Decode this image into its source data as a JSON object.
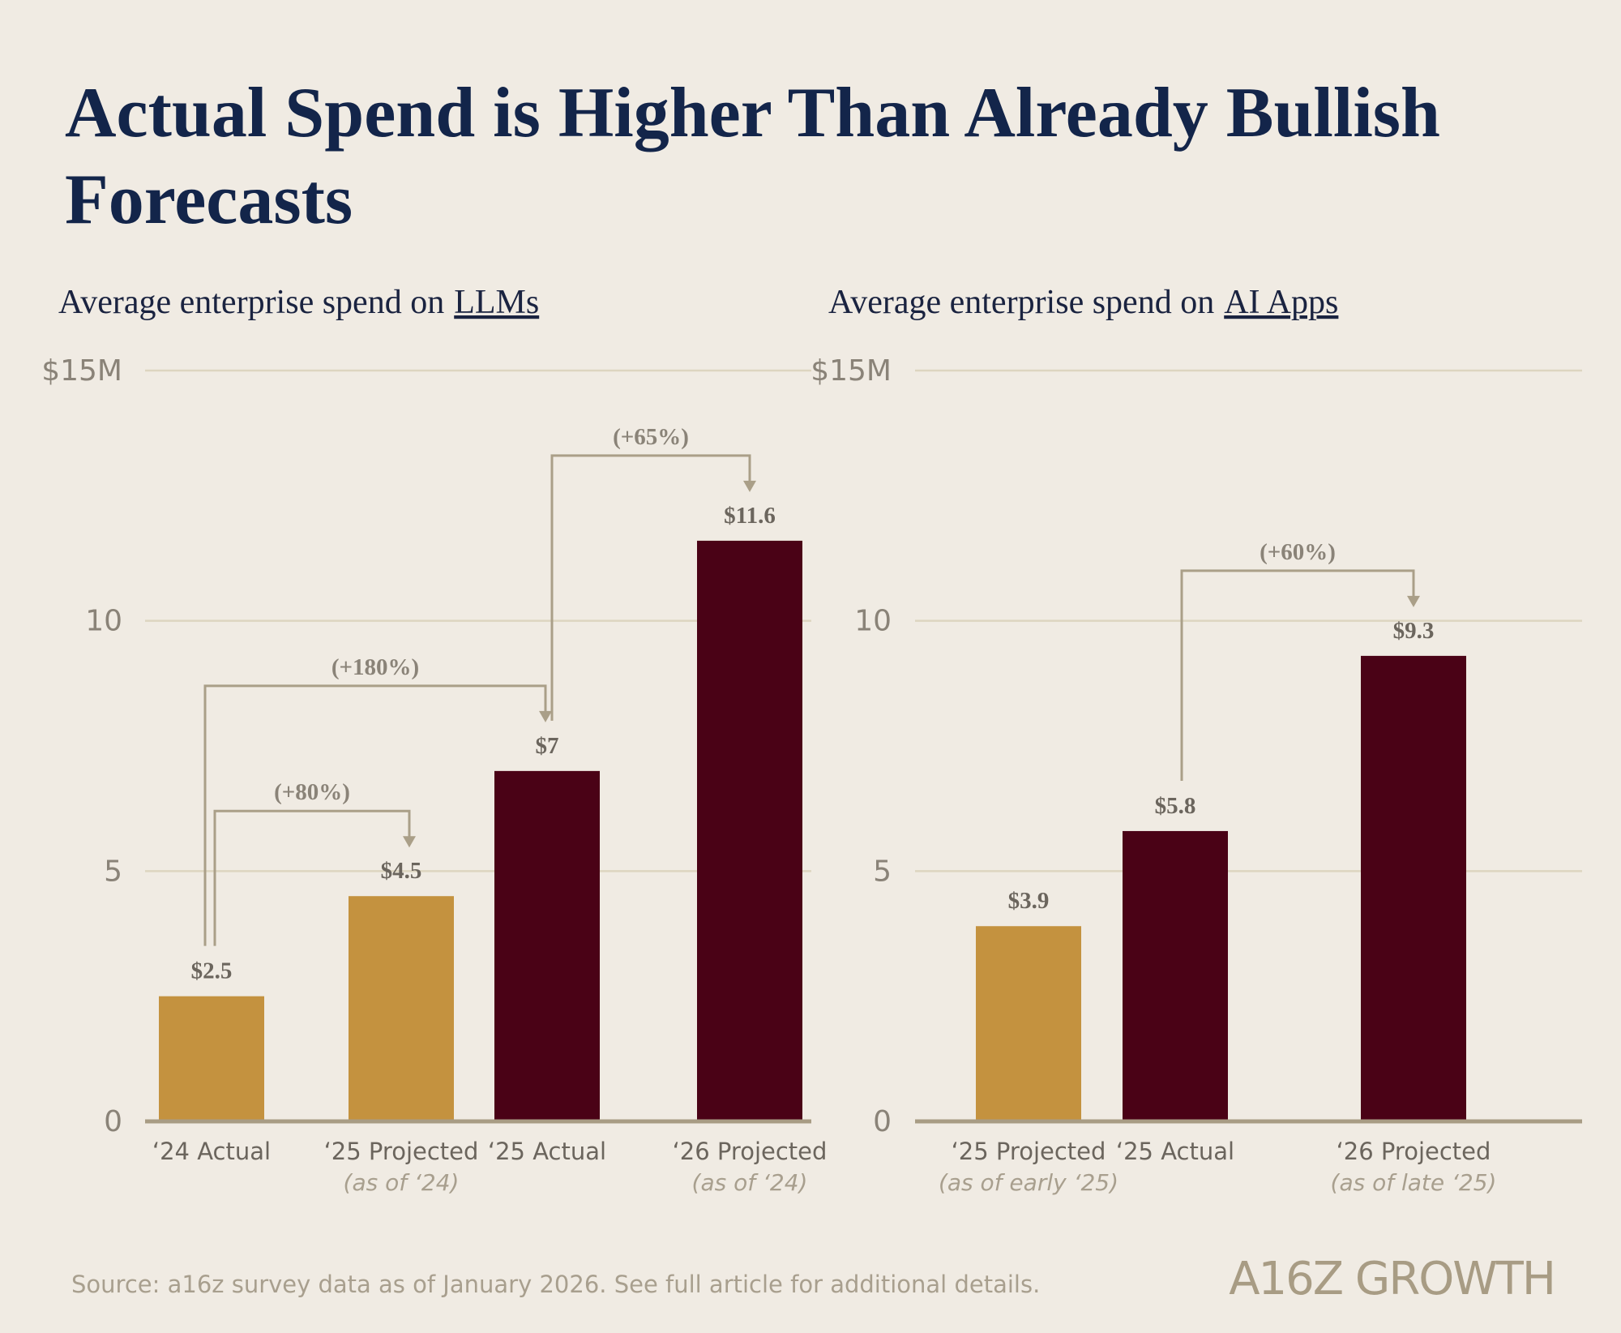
{
  "title": [
    "Actual Spend is Higher Than Already Bullish",
    "Forecasts"
  ],
  "chart_data": [
    {
      "type": "bar",
      "subtitle": "Average enterprise spend on",
      "subtitle_emphasis": "LLMs",
      "categories": [
        "‘24 Actual",
        "‘25 Projected",
        "‘25 Actual",
        "‘26 Projected"
      ],
      "category_notes": [
        null,
        "(as of ‘24)",
        null,
        "(as of ‘24)"
      ],
      "values": [
        2.5,
        4.5,
        7,
        11.6
      ],
      "value_labels": [
        "$2.5",
        "$4.5",
        "$7",
        "$11.6"
      ],
      "colors": [
        "#c4923f",
        "#c4923f",
        "#4a0216",
        "#4a0216"
      ],
      "annotations": [
        "(+80%)",
        "(+180%)",
        "(+65%)"
      ],
      "ylim": [
        0,
        15
      ],
      "yticks": [
        0,
        5,
        10,
        {
          "value": 15,
          "label": "$15M"
        }
      ],
      "grid": true
    },
    {
      "type": "bar",
      "subtitle": "Average enterprise spend on",
      "subtitle_emphasis": "AI Apps",
      "categories": [
        "‘25 Projected",
        "‘25 Actual",
        "‘26 Projected"
      ],
      "category_notes": [
        "(as of early ‘25)",
        null,
        "(as of late ‘25)"
      ],
      "values": [
        3.9,
        5.8,
        9.3
      ],
      "value_labels": [
        "$3.9",
        "$5.8",
        "$9.3"
      ],
      "colors": [
        "#c4923f",
        "#4a0216",
        "#4a0216"
      ],
      "annotations": [
        "(+60%)"
      ],
      "ylim": [
        0,
        15
      ],
      "yticks": [
        0,
        5,
        10,
        {
          "value": 15,
          "label": "$15M"
        }
      ],
      "grid": true
    }
  ],
  "source": "Source: a16z survey data as of January 2026. See full article for additional details.",
  "logo": "A16Z GROWTH"
}
